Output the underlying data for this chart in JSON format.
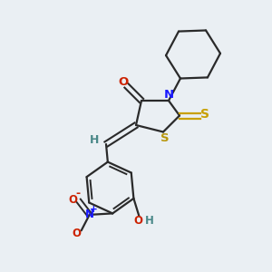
{
  "bg_color": "#eaeff3",
  "bond_color": "#2a2a2a",
  "figsize": [
    3.0,
    3.0
  ],
  "dpi": 100,
  "xlim": [
    0,
    10
  ],
  "ylim": [
    0,
    10
  ],
  "N_color": "#1a1aff",
  "S_color": "#b8960a",
  "O_color": "#cc2200",
  "H_color": "#4a8888",
  "thione_S_color": "#c8a000"
}
